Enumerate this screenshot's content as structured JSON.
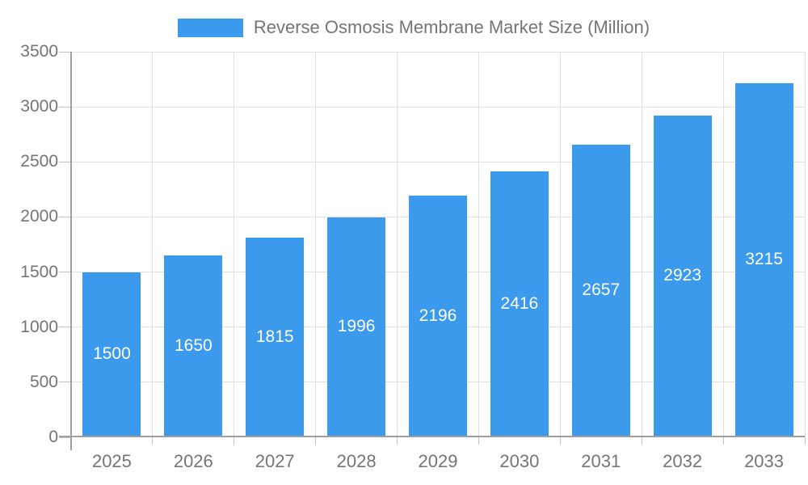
{
  "chart_data": {
    "type": "bar",
    "title": "",
    "xlabel": "",
    "ylabel": "",
    "legend_label": "Reverse Osmosis Membrane Market Size (Million)",
    "legend_position": "top-center",
    "categories": [
      "2025",
      "2026",
      "2027",
      "2028",
      "2029",
      "2030",
      "2031",
      "2032",
      "2033"
    ],
    "values": [
      1500,
      1650,
      1815,
      1996,
      2196,
      2416,
      2657,
      2923,
      3215
    ],
    "bar_labels_visible": true,
    "ylim": [
      0,
      3500
    ],
    "yticks": [
      0,
      500,
      1000,
      1500,
      2000,
      2500,
      3000,
      3500
    ],
    "grid": true,
    "colors": {
      "bar": "#3C9AEC",
      "value_label": "#ffffff",
      "axis_text": "#757575",
      "axis_line": "#9e9e9e",
      "tick_line": "#c2c2c2",
      "gridline": "#e0e0e0",
      "background": "#ffffff"
    }
  }
}
